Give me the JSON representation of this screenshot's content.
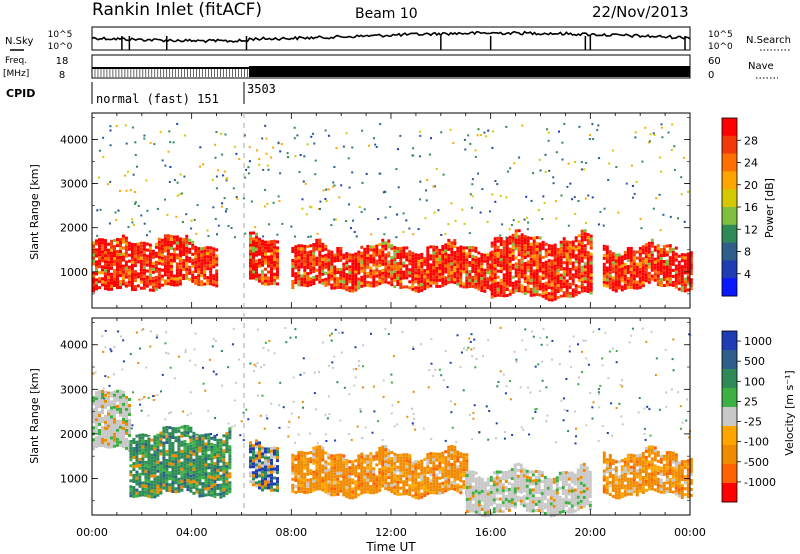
{
  "header": {
    "station": "Rankin Inlet (fitACF)",
    "beam": "Beam 10",
    "date": "22/Nov/2013"
  },
  "left_labels": {
    "nsky": "N.Sky",
    "freq": "Freq.",
    "mhz": "[MHz]",
    "cpid": "CPID"
  },
  "right_labels": {
    "nsearch": "N.Search",
    "nave": "Nave"
  },
  "noise_axis": {
    "left_ticks": [
      "10^5",
      "10^0"
    ],
    "right_ticks": [
      "10^5",
      "10^0"
    ]
  },
  "freq_axis": {
    "left_ticks": [
      "18",
      "8"
    ],
    "right_ticks": [
      "60",
      "0"
    ]
  },
  "cpid": {
    "label1": "normal (fast) 151",
    "label2": "3503"
  },
  "power_colorbar": {
    "title": "Power [dB]",
    "ticks": [
      "28",
      "24",
      "20",
      "16",
      "12",
      "8",
      "4"
    ],
    "colors": [
      "#ff0000",
      "#f03a0a",
      "#ff7000",
      "#ffa500",
      "#d4c800",
      "#7fc040",
      "#2e8b57",
      "#2e5f8a",
      "#1e3cb4",
      "#0a18ff"
    ]
  },
  "velocity_colorbar": {
    "title": "Velocity [m s⁻¹]",
    "ticks": [
      "1000",
      "500",
      "100",
      "25",
      "-25",
      "-100",
      "-500",
      "-1000"
    ],
    "colors": [
      "#1e3cb4",
      "#2e5f8a",
      "#2e8b57",
      "#3cb043",
      "#c8c8c8",
      "#ffa500",
      "#f08a00",
      "#ff6000",
      "#ff0000"
    ]
  },
  "x_axis": {
    "ticks": [
      "00:00",
      "04:00",
      "08:00",
      "12:00",
      "16:00",
      "20:00",
      "00:00"
    ],
    "label": "Time UT"
  },
  "chart_data": [
    {
      "type": "heatmap",
      "title": "Power",
      "ylabel": "Slant Range [km]",
      "ylim": [
        180,
        4600
      ],
      "yticks": [
        1000,
        2000,
        3000,
        4000
      ],
      "xlabel": "Time UT",
      "xlim_hours": [
        0,
        24
      ],
      "colorbar_label": "Power [dB]",
      "colorbar_ticks": [
        4,
        8,
        12,
        16,
        20,
        24,
        28
      ],
      "regions": [
        {
          "t0": 0.0,
          "t1": 1.2,
          "r0": 600,
          "r1": 1700,
          "level": "high"
        },
        {
          "t0": 1.2,
          "t1": 3.5,
          "r0": 700,
          "r1": 1800,
          "level": "high"
        },
        {
          "t0": 3.5,
          "t1": 5.0,
          "r0": 800,
          "r1": 1700,
          "level": "high"
        },
        {
          "t0": 6.3,
          "t1": 7.5,
          "r0": 800,
          "r1": 1800,
          "level": "high"
        },
        {
          "t0": 8.0,
          "t1": 16.0,
          "r0": 700,
          "r1": 1600,
          "level": "high"
        },
        {
          "t0": 16.0,
          "t1": 20.0,
          "r0": 500,
          "r1": 1800,
          "level": "high"
        },
        {
          "t0": 20.5,
          "t1": 24.0,
          "r0": 700,
          "r1": 1600,
          "level": "high"
        }
      ]
    },
    {
      "type": "heatmap",
      "title": "Velocity",
      "ylabel": "Slant Range [km]",
      "ylim": [
        180,
        4600
      ],
      "yticks": [
        1000,
        2000,
        3000,
        4000
      ],
      "xlabel": "Time UT",
      "xlim_hours": [
        0,
        24
      ],
      "colorbar_label": "Velocity [m s⁻¹]",
      "colorbar_ticks": [
        -1000,
        -500,
        -100,
        -25,
        25,
        100,
        500,
        1000
      ],
      "regions": [
        {
          "t0": 0.0,
          "t1": 1.5,
          "r0": 1700,
          "r1": 2900,
          "level": "near-zero"
        },
        {
          "t0": 1.5,
          "t1": 5.5,
          "r0": 700,
          "r1": 2100,
          "level": "positive"
        },
        {
          "t0": 6.3,
          "t1": 7.5,
          "r0": 800,
          "r1": 1800,
          "level": "mixed"
        },
        {
          "t0": 8.0,
          "t1": 15.0,
          "r0": 700,
          "r1": 1600,
          "level": "negative"
        },
        {
          "t0": 15.0,
          "t1": 20.0,
          "r0": 300,
          "r1": 1200,
          "level": "near-zero"
        },
        {
          "t0": 20.5,
          "t1": 24.0,
          "r0": 700,
          "r1": 1600,
          "level": "negative"
        }
      ]
    }
  ]
}
